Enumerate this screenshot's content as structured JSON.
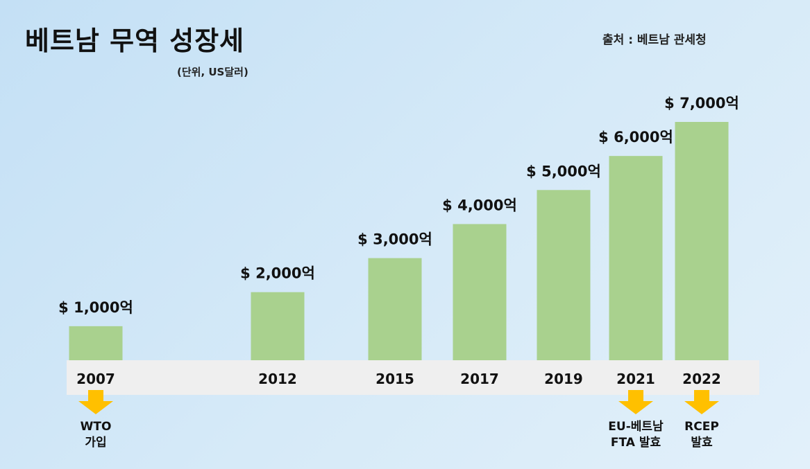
{
  "title": "베트남 무역 성장세",
  "unit": "(단위, US달러)",
  "source": "출처 : 베트남 관세청",
  "colors": {
    "bar": "#a9d18e",
    "arrow": "#ffc000",
    "axis_band": "#efefef"
  },
  "chart_data": {
    "type": "bar",
    "title": "베트남 무역 성장세",
    "categories": [
      "2007",
      "2012",
      "2015",
      "2017",
      "2019",
      "2021",
      "2022"
    ],
    "values": [
      1000,
      2000,
      3000,
      4000,
      5000,
      6000,
      7000
    ],
    "value_labels": [
      "$ 1,000억",
      "$ 2,000억",
      "$ 3,000억",
      "$ 4,000억",
      "$ 5,000억",
      "$ 6,000억",
      "$ 7,000억"
    ],
    "ylabel": "",
    "xlabel": "",
    "ylim": [
      0,
      7000
    ],
    "grid": false,
    "legend": "none"
  },
  "events": [
    {
      "year": "2007",
      "lines": [
        "WTO",
        "가입"
      ]
    },
    {
      "year": "2021",
      "lines": [
        "EU-베트남",
        "FTA 발효"
      ]
    },
    {
      "year": "2022",
      "lines": [
        "RCEP",
        "발효"
      ]
    }
  ]
}
